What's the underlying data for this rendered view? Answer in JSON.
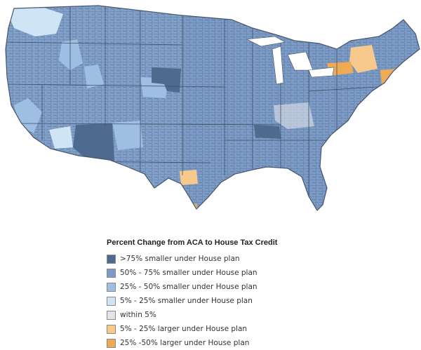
{
  "legend": {
    "title": "Percent Change from ACA to House Tax Credit",
    "items": [
      {
        "label": ">75% smaller under House plan",
        "color": "#4e6a8e"
      },
      {
        "label": "50% - 75% smaller under House plan",
        "color": "#7b9bc6"
      },
      {
        "label": "25% - 50% smaller under House plan",
        "color": "#9fbfe2"
      },
      {
        "label": "5% - 25% smaller under House plan",
        "color": "#cfe4f5"
      },
      {
        "label": "within 5%",
        "color": "#e3e3e9"
      },
      {
        "label": "5% - 25% larger under House plan",
        "color": "#f7c98c"
      },
      {
        "label": "25% -50% larger under House plan",
        "color": "#eeaa55"
      }
    ]
  },
  "map": {
    "subject": "United States counties",
    "base_color": "#7b9bc6",
    "border_color": "#44556e",
    "highlighted_regions": [
      {
        "area": "Arizona / New Mexico border",
        "category": ">75% smaller under House plan"
      },
      {
        "area": "South Dakota",
        "category": ">75% smaller under House plan"
      },
      {
        "area": "Tennessee / Kentucky",
        "category": ">75% smaller under House plan"
      },
      {
        "area": "Pacific Northwest / Montana",
        "category": "5% - 25% smaller under House plan"
      },
      {
        "area": "Upstate New York",
        "category": "5% - 25% larger under House plan"
      },
      {
        "area": "Central Texas",
        "category": "5% - 25% larger under House plan"
      },
      {
        "area": "Southern Texas",
        "category": "25% -50% larger under House plan"
      }
    ]
  }
}
